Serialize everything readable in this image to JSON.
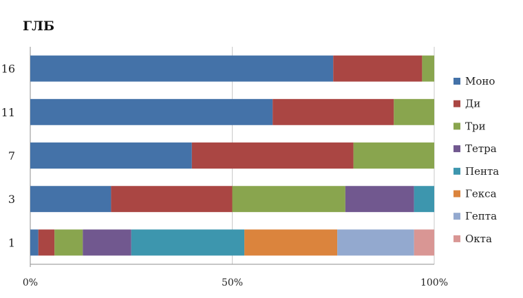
{
  "chart_data": {
    "type": "bar",
    "orientation": "horizontal",
    "stacked": "percent",
    "title": "ГЛБ",
    "categories": [
      "16",
      "11",
      "7",
      "3",
      "1"
    ],
    "series": [
      {
        "name": "Моно",
        "color": "#4472A8",
        "values": [
          75,
          60,
          40,
          20,
          2
        ]
      },
      {
        "name": "Ди",
        "color": "#AA4643",
        "values": [
          22,
          30,
          40,
          30,
          4
        ]
      },
      {
        "name": "Три",
        "color": "#89A54E",
        "values": [
          3,
          10,
          20,
          28,
          7
        ]
      },
      {
        "name": "Тетра",
        "color": "#71588F",
        "values": [
          0,
          0,
          0,
          17,
          12
        ]
      },
      {
        "name": "Пента",
        "color": "#3D96AE",
        "values": [
          0,
          0,
          0,
          5,
          28
        ]
      },
      {
        "name": "Гекса",
        "color": "#DB843D",
        "values": [
          0,
          0,
          0,
          0,
          23
        ]
      },
      {
        "name": "Гепта",
        "color": "#93A9CF",
        "values": [
          0,
          0,
          0,
          0,
          19
        ]
      },
      {
        "name": "Окта",
        "color": "#D99694",
        "values": [
          0,
          0,
          0,
          0,
          5
        ]
      }
    ],
    "xlim": [
      0,
      100
    ],
    "xticks": [
      "0%",
      "50%",
      "100%"
    ],
    "grid": "vertical",
    "legend": "right"
  }
}
